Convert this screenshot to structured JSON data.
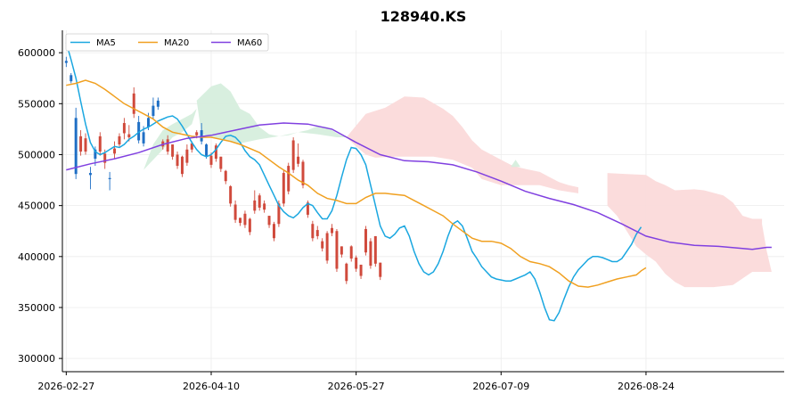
{
  "chart_data": {
    "type": "candlestick",
    "title": "128940.KS",
    "xlabel": "",
    "ylabel": "",
    "ylim": [
      287000,
      622000
    ],
    "grid": true,
    "legend": {
      "placement": "top-left",
      "entries": [
        "MA5",
        "MA20",
        "MA60"
      ]
    },
    "y_ticks": [
      300000,
      350000,
      400000,
      450000,
      500000,
      550000,
      600000
    ],
    "y_tick_labels": [
      "300000",
      "350000",
      "400000",
      "450000",
      "500000",
      "550000",
      "600000"
    ],
    "x_ticks": [
      {
        "label": "2026-02-27",
        "index": 0
      },
      {
        "label": "2026-04-10",
        "index": 30
      },
      {
        "label": "2026-05-27",
        "index": 60
      },
      {
        "label": "2026-07-09",
        "index": 90
      },
      {
        "label": "2026-08-24",
        "index": 120
      }
    ],
    "x_range": [
      -0.8,
      148.6
    ],
    "colors": {
      "up": "#d04a3c",
      "down": "#1f6fc5",
      "ma5": "#1aa7e0",
      "ma20": "#f0a020",
      "ma60": "#8040e0",
      "cloud_bull": "#d6eedd",
      "cloud_bear": "#fbdada"
    },
    "series": [
      {
        "name": "MA5",
        "values": [
          [
            0,
            610000
          ],
          [
            1,
            593000
          ],
          [
            2,
            575000
          ],
          [
            3,
            552000
          ],
          [
            4,
            530000
          ],
          [
            5,
            512000
          ],
          [
            6,
            503000
          ],
          [
            7,
            500000
          ],
          [
            8,
            502000
          ],
          [
            9,
            505000
          ],
          [
            10,
            508000
          ],
          [
            11,
            507000
          ],
          [
            12,
            510000
          ],
          [
            13,
            515000
          ],
          [
            14,
            518000
          ],
          [
            15,
            522000
          ],
          [
            16,
            525000
          ],
          [
            17,
            527000
          ],
          [
            18,
            530000
          ],
          [
            19,
            533000
          ],
          [
            20,
            535000
          ],
          [
            21,
            537000
          ],
          [
            22,
            538000
          ],
          [
            23,
            535000
          ],
          [
            24,
            528000
          ],
          [
            25,
            520000
          ],
          [
            26,
            512000
          ],
          [
            27,
            505000
          ],
          [
            28,
            500000
          ],
          [
            29,
            498000
          ],
          [
            30,
            500000
          ],
          [
            31,
            505000
          ],
          [
            32,
            512000
          ],
          [
            33,
            518000
          ],
          [
            34,
            519000
          ],
          [
            35,
            517000
          ],
          [
            36,
            512000
          ],
          [
            37,
            504000
          ],
          [
            38,
            498000
          ],
          [
            39,
            495000
          ],
          [
            40,
            490000
          ],
          [
            41,
            480000
          ],
          [
            42,
            470000
          ],
          [
            43,
            460000
          ],
          [
            44,
            450000
          ],
          [
            45,
            444000
          ],
          [
            46,
            440000
          ],
          [
            47,
            438000
          ],
          [
            48,
            442000
          ],
          [
            49,
            448000
          ],
          [
            50,
            452000
          ],
          [
            51,
            450000
          ],
          [
            52,
            443000
          ],
          [
            53,
            437000
          ],
          [
            54,
            437000
          ],
          [
            55,
            445000
          ],
          [
            56,
            460000
          ],
          [
            57,
            478000
          ],
          [
            58,
            495000
          ],
          [
            59,
            507000
          ],
          [
            60,
            506000
          ],
          [
            61,
            500000
          ],
          [
            62,
            490000
          ],
          [
            63,
            470000
          ],
          [
            64,
            450000
          ],
          [
            65,
            430000
          ],
          [
            66,
            420000
          ],
          [
            67,
            418000
          ],
          [
            68,
            422000
          ],
          [
            69,
            428000
          ],
          [
            70,
            430000
          ],
          [
            71,
            420000
          ],
          [
            72,
            405000
          ],
          [
            73,
            393000
          ],
          [
            74,
            385000
          ],
          [
            75,
            382000
          ],
          [
            76,
            385000
          ],
          [
            77,
            393000
          ],
          [
            78,
            405000
          ],
          [
            79,
            420000
          ],
          [
            80,
            432000
          ],
          [
            81,
            435000
          ],
          [
            82,
            430000
          ],
          [
            83,
            418000
          ],
          [
            84,
            405000
          ],
          [
            85,
            398000
          ],
          [
            86,
            390000
          ],
          [
            87,
            385000
          ],
          [
            88,
            380000
          ],
          [
            89,
            378000
          ],
          [
            90,
            377000
          ],
          [
            91,
            376000
          ],
          [
            92,
            376000
          ],
          [
            93,
            378000
          ],
          [
            94,
            380000
          ],
          [
            95,
            382000
          ],
          [
            96,
            385000
          ],
          [
            97,
            378000
          ],
          [
            98,
            365000
          ],
          [
            99,
            350000
          ],
          [
            100,
            338000
          ],
          [
            101,
            337000
          ],
          [
            102,
            345000
          ],
          [
            103,
            358000
          ],
          [
            104,
            370000
          ],
          [
            105,
            380000
          ],
          [
            106,
            387000
          ],
          [
            107,
            392000
          ],
          [
            108,
            397000
          ],
          [
            109,
            400000
          ],
          [
            110,
            400000
          ],
          [
            111,
            399000
          ],
          [
            112,
            397000
          ],
          [
            113,
            395000
          ],
          [
            114,
            395000
          ],
          [
            115,
            398000
          ],
          [
            116,
            405000
          ],
          [
            117,
            412000
          ],
          [
            118,
            422000
          ],
          [
            119,
            429000
          ]
        ]
      },
      {
        "name": "MA20",
        "values": [
          [
            0,
            568000
          ],
          [
            2,
            570000
          ],
          [
            4,
            573000
          ],
          [
            6,
            570000
          ],
          [
            8,
            564000
          ],
          [
            10,
            557000
          ],
          [
            12,
            550000
          ],
          [
            14,
            545000
          ],
          [
            16,
            540000
          ],
          [
            18,
            535000
          ],
          [
            20,
            527000
          ],
          [
            22,
            522000
          ],
          [
            24,
            520000
          ],
          [
            26,
            518000
          ],
          [
            28,
            517000
          ],
          [
            30,
            517000
          ],
          [
            32,
            515000
          ],
          [
            34,
            513000
          ],
          [
            36,
            510000
          ],
          [
            38,
            506000
          ],
          [
            40,
            502000
          ],
          [
            42,
            495000
          ],
          [
            44,
            488000
          ],
          [
            46,
            482000
          ],
          [
            48,
            475000
          ],
          [
            50,
            470000
          ],
          [
            52,
            462000
          ],
          [
            54,
            457000
          ],
          [
            56,
            455000
          ],
          [
            58,
            452000
          ],
          [
            60,
            452000
          ],
          [
            62,
            458000
          ],
          [
            64,
            462000
          ],
          [
            66,
            462000
          ],
          [
            68,
            461000
          ],
          [
            70,
            460000
          ],
          [
            72,
            455000
          ],
          [
            74,
            450000
          ],
          [
            76,
            445000
          ],
          [
            78,
            440000
          ],
          [
            80,
            432000
          ],
          [
            82,
            425000
          ],
          [
            84,
            418000
          ],
          [
            86,
            415000
          ],
          [
            88,
            415000
          ],
          [
            90,
            413000
          ],
          [
            92,
            408000
          ],
          [
            94,
            400000
          ],
          [
            96,
            395000
          ],
          [
            98,
            393000
          ],
          [
            100,
            390000
          ],
          [
            102,
            384000
          ],
          [
            104,
            376000
          ],
          [
            106,
            371000
          ],
          [
            108,
            370000
          ],
          [
            110,
            372000
          ],
          [
            112,
            375000
          ],
          [
            114,
            378000
          ],
          [
            116,
            380000
          ],
          [
            118,
            382000
          ],
          [
            119,
            386000
          ],
          [
            120,
            389000
          ]
        ]
      },
      {
        "name": "MA60",
        "values": [
          [
            0,
            485000
          ],
          [
            5,
            491000
          ],
          [
            10,
            496000
          ],
          [
            15,
            502000
          ],
          [
            20,
            510000
          ],
          [
            25,
            516000
          ],
          [
            30,
            519000
          ],
          [
            35,
            524000
          ],
          [
            40,
            529000
          ],
          [
            45,
            531000
          ],
          [
            50,
            530000
          ],
          [
            55,
            525000
          ],
          [
            60,
            512000
          ],
          [
            65,
            500000
          ],
          [
            70,
            494000
          ],
          [
            75,
            493000
          ],
          [
            80,
            490000
          ],
          [
            85,
            483000
          ],
          [
            90,
            474000
          ],
          [
            95,
            464000
          ],
          [
            100,
            457000
          ],
          [
            105,
            451000
          ],
          [
            110,
            443000
          ],
          [
            115,
            432000
          ],
          [
            120,
            420000
          ],
          [
            125,
            414000
          ],
          [
            130,
            411000
          ],
          [
            135,
            410000
          ],
          [
            140,
            408000
          ],
          [
            142,
            407000
          ],
          [
            145,
            409000
          ],
          [
            146,
            409000
          ]
        ]
      }
    ],
    "candles": [
      [
        0,
        592000,
        590000,
        596000,
        586000
      ],
      [
        1,
        578000,
        572000,
        580000,
        570000
      ],
      [
        2,
        536000,
        481000,
        546000,
        476000
      ],
      [
        3,
        503000,
        518000,
        524000,
        499000
      ],
      [
        4,
        503000,
        516000,
        521000,
        500000
      ],
      [
        5,
        482000,
        480000,
        488000,
        466000
      ],
      [
        6,
        505000,
        496000,
        508000,
        489000
      ],
      [
        7,
        503000,
        518000,
        522000,
        499000
      ],
      [
        8,
        492000,
        501000,
        505000,
        486000
      ],
      [
        9,
        477000,
        476000,
        483000,
        465000
      ],
      [
        10,
        501000,
        506000,
        513000,
        496000
      ],
      [
        11,
        510000,
        518000,
        521000,
        508000
      ],
      [
        12,
        521000,
        531000,
        536000,
        515000
      ],
      [
        13,
        517000,
        520000,
        529000,
        513000
      ],
      [
        14,
        540000,
        560000,
        566000,
        536000
      ],
      [
        15,
        532000,
        514000,
        538000
      ],
      [
        16,
        522000,
        511000,
        528000
      ],
      [
        17,
        536000,
        527000,
        541000
      ],
      [
        18,
        548000,
        538000,
        556000
      ],
      [
        19,
        553000,
        547000,
        556000
      ],
      [
        20,
        508000,
        513000,
        515000
      ],
      [
        21,
        503000,
        515000,
        519000
      ],
      [
        22,
        498000,
        510000,
        510000
      ],
      [
        23,
        489000,
        500000,
        503000
      ],
      [
        24,
        481000,
        498000,
        499000
      ],
      [
        25,
        492000,
        505000,
        510000
      ],
      [
        26,
        505000,
        511000,
        513000
      ],
      [
        27,
        519000,
        522000,
        524000
      ],
      [
        28,
        524000,
        513000,
        531000
      ],
      [
        29,
        510000,
        499000,
        511000
      ],
      [
        30,
        490000,
        499000,
        502000
      ],
      [
        31,
        496000,
        509000,
        511000
      ],
      [
        32,
        486000,
        498000,
        498000
      ],
      [
        33,
        474000,
        484000,
        485000
      ],
      [
        34,
        452000,
        469000,
        470000
      ],
      [
        35,
        436000,
        451000,
        455000
      ],
      [
        36,
        433000,
        438000,
        438000
      ],
      [
        37,
        431000,
        442000,
        445000
      ],
      [
        38,
        424000,
        437000,
        438000
      ],
      [
        39,
        445000,
        455000,
        465000
      ],
      [
        40,
        448000,
        460000,
        462000
      ],
      [
        41,
        446000,
        452000,
        455000
      ],
      [
        42,
        431000,
        440000,
        440000
      ],
      [
        43,
        418000,
        432000,
        434000
      ],
      [
        44,
        432000,
        452000,
        455000
      ],
      [
        45,
        452000,
        482000,
        485000
      ],
      [
        46,
        464000,
        489000,
        492000
      ],
      [
        47,
        485000,
        514000,
        517000
      ],
      [
        48,
        491000,
        498000,
        511000
      ],
      [
        49,
        470000,
        493000,
        495000
      ],
      [
        50,
        441000,
        453000,
        455000
      ],
      [
        51,
        418000,
        432000,
        435000
      ],
      [
        52,
        420000,
        426000,
        430000
      ],
      [
        53,
        408000,
        415000,
        418000
      ],
      [
        54,
        396000,
        423000,
        425000
      ],
      [
        55,
        423000,
        428000,
        432000
      ],
      [
        56,
        388000,
        425000,
        427000
      ],
      [
        57,
        402000,
        410000,
        410000
      ],
      [
        58,
        376000,
        393000,
        394000
      ],
      [
        59,
        398000,
        410000,
        411000
      ],
      [
        60,
        388000,
        399000,
        401000
      ],
      [
        61,
        381000,
        392000,
        392000
      ],
      [
        62,
        404000,
        427000,
        430000
      ],
      [
        63,
        391000,
        415000,
        418000
      ],
      [
        64,
        393000,
        420000,
        420000
      ],
      [
        65,
        380000,
        394000,
        394000
      ]
    ]
  }
}
